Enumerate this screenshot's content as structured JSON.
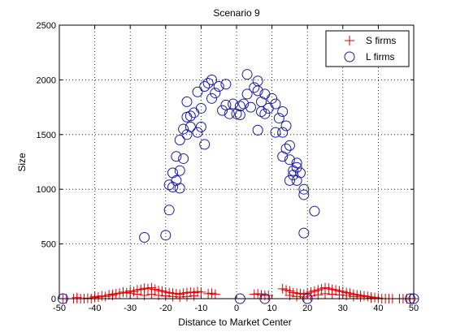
{
  "chart_data": {
    "type": "scatter",
    "title": "Scenario 9",
    "xlabel": "Distance to Market Center",
    "ylabel": "Size",
    "xlim": [
      -50,
      50
    ],
    "ylim": [
      0,
      2500
    ],
    "xticks": [
      -50,
      -40,
      -30,
      -20,
      -10,
      0,
      10,
      20,
      30,
      40,
      50
    ],
    "yticks": [
      0,
      500,
      1000,
      1500,
      2000,
      2500
    ],
    "grid": true,
    "legend": "top-right",
    "series": [
      {
        "name": "S firms",
        "marker": "plus",
        "color": "#dd0000",
        "points": [
          [
            -49,
            0
          ],
          [
            -48,
            0
          ],
          [
            -46,
            0
          ],
          [
            -45,
            0
          ],
          [
            -44,
            0
          ],
          [
            -43,
            0
          ],
          [
            -42,
            5
          ],
          [
            -41,
            0
          ],
          [
            -40,
            10
          ],
          [
            -39,
            15
          ],
          [
            -38,
            25
          ],
          [
            -37,
            20
          ],
          [
            -36,
            35
          ],
          [
            -35,
            30
          ],
          [
            -34,
            45
          ],
          [
            -33,
            50
          ],
          [
            -32,
            60
          ],
          [
            -31,
            55
          ],
          [
            -30,
            70
          ],
          [
            -29,
            65
          ],
          [
            -28,
            80
          ],
          [
            -27,
            85
          ],
          [
            -26,
            95
          ],
          [
            -25,
            90
          ],
          [
            -24,
            100
          ],
          [
            -23,
            85
          ],
          [
            -22,
            75
          ],
          [
            -21,
            70
          ],
          [
            -20,
            60
          ],
          [
            -19,
            55
          ],
          [
            -18,
            50
          ],
          [
            -17,
            45
          ],
          [
            -16,
            40
          ],
          [
            -15,
            50
          ],
          [
            -14,
            55
          ],
          [
            -13,
            60
          ],
          [
            -12,
            55
          ],
          [
            -11,
            65
          ],
          [
            -10,
            60
          ],
          [
            -45,
            10
          ],
          [
            -40,
            20
          ],
          [
            -35,
            40
          ],
          [
            -30,
            50
          ],
          [
            -28,
            40
          ],
          [
            -26,
            30
          ],
          [
            -24,
            40
          ],
          [
            -22,
            30
          ],
          [
            -20,
            25
          ],
          [
            -18,
            20
          ],
          [
            -16,
            15
          ],
          [
            -14,
            20
          ],
          [
            -12,
            25
          ],
          [
            -8,
            45
          ],
          [
            -7,
            50
          ],
          [
            -6,
            40
          ],
          [
            5,
            40
          ],
          [
            6,
            45
          ],
          [
            7,
            35
          ],
          [
            8,
            30
          ],
          [
            9,
            30
          ],
          [
            13,
            90
          ],
          [
            14,
            80
          ],
          [
            15,
            70
          ],
          [
            16,
            55
          ],
          [
            17,
            50
          ],
          [
            18,
            45
          ],
          [
            19,
            40
          ],
          [
            20,
            50
          ],
          [
            21,
            60
          ],
          [
            22,
            70
          ],
          [
            23,
            80
          ],
          [
            24,
            90
          ],
          [
            25,
            100
          ],
          [
            26,
            95
          ],
          [
            27,
            85
          ],
          [
            28,
            80
          ],
          [
            29,
            70
          ],
          [
            30,
            65
          ],
          [
            31,
            55
          ],
          [
            32,
            50
          ],
          [
            33,
            40
          ],
          [
            34,
            35
          ],
          [
            35,
            30
          ],
          [
            36,
            25
          ],
          [
            37,
            20
          ],
          [
            38,
            15
          ],
          [
            39,
            10
          ],
          [
            40,
            5
          ],
          [
            41,
            0
          ],
          [
            42,
            0
          ],
          [
            44,
            0
          ],
          [
            46,
            0
          ],
          [
            48,
            0
          ],
          [
            49,
            0
          ],
          [
            50,
            0
          ],
          [
            15,
            30
          ],
          [
            17,
            20
          ],
          [
            19,
            15
          ],
          [
            21,
            25
          ],
          [
            23,
            35
          ],
          [
            25,
            45
          ],
          [
            27,
            40
          ],
          [
            29,
            35
          ],
          [
            31,
            30
          ],
          [
            33,
            20
          ],
          [
            35,
            15
          ],
          [
            38,
            5
          ],
          [
            43,
            0
          ],
          [
            47,
            0
          ]
        ]
      },
      {
        "name": "L firms",
        "marker": "circle",
        "color": "#1a1aa0",
        "points": [
          [
            -49,
            0
          ],
          [
            -26,
            560
          ],
          [
            -20,
            580
          ],
          [
            -19,
            810
          ],
          [
            -19,
            1040
          ],
          [
            -18,
            1020
          ],
          [
            -18,
            1150
          ],
          [
            -17,
            1080
          ],
          [
            -17,
            1300
          ],
          [
            -16,
            1170
          ],
          [
            -16,
            1450
          ],
          [
            -16,
            1010
          ],
          [
            -15,
            1550
          ],
          [
            -15,
            1280
          ],
          [
            -14,
            1500
          ],
          [
            -14,
            1660
          ],
          [
            -14,
            1800
          ],
          [
            -13,
            1570
          ],
          [
            -13,
            1670
          ],
          [
            -12,
            1700
          ],
          [
            -11,
            1520
          ],
          [
            -11,
            1890
          ],
          [
            -10,
            1570
          ],
          [
            -10,
            1740
          ],
          [
            -9,
            1940
          ],
          [
            -9,
            1410
          ],
          [
            -8,
            1970
          ],
          [
            -7,
            1830
          ],
          [
            -7,
            2000
          ],
          [
            -6,
            1880
          ],
          [
            -5,
            1940
          ],
          [
            -4,
            1720
          ],
          [
            -3,
            1960
          ],
          [
            -3,
            1770
          ],
          [
            -2,
            1690
          ],
          [
            -1,
            1780
          ],
          [
            0,
            1690
          ],
          [
            1,
            1760
          ],
          [
            1,
            1680
          ],
          [
            2,
            1780
          ],
          [
            3,
            2050
          ],
          [
            3,
            1870
          ],
          [
            4,
            1750
          ],
          [
            5,
            1930
          ],
          [
            6,
            1990
          ],
          [
            6,
            1900
          ],
          [
            6,
            1540
          ],
          [
            7,
            1710
          ],
          [
            7,
            1800
          ],
          [
            8,
            1870
          ],
          [
            8,
            1690
          ],
          [
            9,
            1740
          ],
          [
            10,
            1830
          ],
          [
            11,
            1780
          ],
          [
            11,
            1520
          ],
          [
            12,
            1650
          ],
          [
            13,
            1300
          ],
          [
            13,
            1520
          ],
          [
            13,
            1710
          ],
          [
            14,
            1370
          ],
          [
            14,
            1580
          ],
          [
            15,
            1080
          ],
          [
            15,
            1270
          ],
          [
            15,
            1400
          ],
          [
            16,
            1170
          ],
          [
            16,
            1130
          ],
          [
            17,
            1240
          ],
          [
            17,
            1080
          ],
          [
            17,
            1200
          ],
          [
            18,
            1150
          ],
          [
            19,
            600
          ],
          [
            19,
            1000
          ],
          [
            19,
            950
          ],
          [
            22,
            800
          ],
          [
            1,
            0
          ],
          [
            8,
            0
          ],
          [
            20,
            0
          ],
          [
            50,
            0
          ],
          [
            49,
            0
          ]
        ]
      }
    ]
  }
}
